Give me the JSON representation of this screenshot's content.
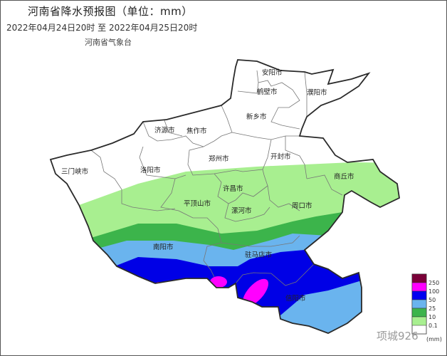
{
  "header": {
    "title": "河南省降水预报图（单位：mm）",
    "period": "2022年04月24日20时  至  2022年04月25日20时",
    "issuer": "河南省气象台"
  },
  "map": {
    "cities": [
      "安阳市",
      "鹤壁市",
      "濮阳市",
      "新乡市",
      "济源市",
      "焦作市",
      "郑州市",
      "开封市",
      "三门峡市",
      "洛阳市",
      "商丘市",
      "许昌市",
      "平顶山市",
      "漯河市",
      "周口市",
      "南阳市",
      "驻马店市",
      "信阳市"
    ]
  },
  "legend": {
    "unit": "(mm)",
    "levels": [
      {
        "label": "250",
        "color": "#7a0038"
      },
      {
        "label": "100",
        "color": "#ff00ff"
      },
      {
        "label": "50",
        "color": "#0000f0"
      },
      {
        "label": "25",
        "color": "#6ab4ee"
      },
      {
        "label": "10",
        "color": "#3cb44b"
      },
      {
        "label": "0.1",
        "color": "#a8ef90"
      }
    ]
  },
  "watermark": "项城926"
}
